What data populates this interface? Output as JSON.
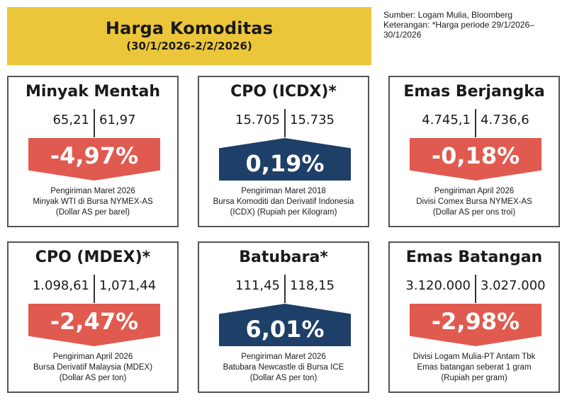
{
  "header": {
    "title": "Harga Komoditas",
    "period": "(30/1/2026-2/2/2026)"
  },
  "source": {
    "line1": "Sumber: Logam Mulia, Bloomberg",
    "line2": "Keterangan: *Harga periode 29/1/2026–",
    "line3": "30/1/2026"
  },
  "colors": {
    "header_bg": "#ecc63a",
    "down": "#e05a4f",
    "up": "#1d3f68"
  },
  "commodities": [
    {
      "title": "Minyak Mentah",
      "value_before": "65,21",
      "value_after": "61,97",
      "change": "-4,97%",
      "direction": "down",
      "note": [
        "Pengiriman Maret 2026",
        "Minyak WTI di Bursa NYMEX-AS",
        "(Dollar AS per barel)"
      ]
    },
    {
      "title": "CPO (ICDX)*",
      "value_before": "15.705",
      "value_after": "15.735",
      "change": "0,19%",
      "direction": "up",
      "note": [
        "Pengiriman Maret 2018",
        "Bursa Komoditi dan Derivatif Indonesia",
        "(ICDX) (Rupiah per Kilogram)"
      ]
    },
    {
      "title": "Emas Berjangka",
      "value_before": "4.745,1",
      "value_after": "4.736,6",
      "change": "-0,18%",
      "direction": "down",
      "note": [
        "Pengiriman April 2026",
        "Divisi Comex Bursa NYMEX-AS",
        "(Dollar AS per ons troi)"
      ]
    },
    {
      "title": "CPO (MDEX)*",
      "value_before": "1.098,61",
      "value_after": "1,071,44",
      "change": "-2,47%",
      "direction": "down",
      "note": [
        "Pengiriman April 2026",
        "Bursa Derivatif Malaysia (MDEX)",
        "(Dollar AS per ton)"
      ]
    },
    {
      "title": "Batubara*",
      "value_before": "111,45",
      "value_after": "118,15",
      "change": "6,01%",
      "direction": "up",
      "note": [
        "Pengiriman Maret 2026",
        "Batubara Newcastle di Bursa ICE",
        "(Dollar AS per ton)"
      ]
    },
    {
      "title": "Emas Batangan",
      "value_before": "3.120.000",
      "value_after": "3.027.000",
      "change": "-2,98%",
      "direction": "down",
      "note": [
        "Divisi Logam Mulia-PT Antam Tbk",
        "Emas batangan seberat 1 gram",
        "(Rupiah per gram)"
      ]
    }
  ]
}
